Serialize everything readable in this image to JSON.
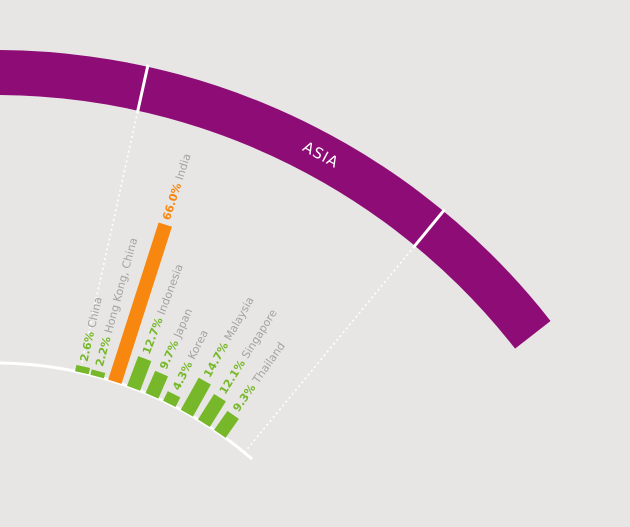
{
  "colors": {
    "background": "#e8e6e5",
    "region_band": "#8e0c76",
    "bar_default": "#77b82a",
    "bar_highlight": "#f7870f",
    "label_text": "#a3a3a3",
    "guide_line": "#ffffff"
  },
  "region": {
    "label": "ASIA"
  },
  "chart_data": {
    "type": "bar",
    "layout": "radial",
    "title": "",
    "value_unit": "%",
    "categories": [
      "China",
      "Hong Kong, China",
      "India",
      "Indonesia",
      "Japan",
      "Korea",
      "Malaysia",
      "Singapore",
      "Thailand"
    ],
    "values": [
      2.6,
      2.2,
      66.0,
      12.7,
      9.7,
      4.3,
      14.7,
      12.1,
      9.3
    ],
    "value_labels": [
      "2.6%",
      "2.2%",
      "66.0%",
      "12.7%",
      "9.7%",
      "4.3%",
      "14.7%",
      "12.1%",
      "9.3%"
    ],
    "highlight_category": "India"
  }
}
